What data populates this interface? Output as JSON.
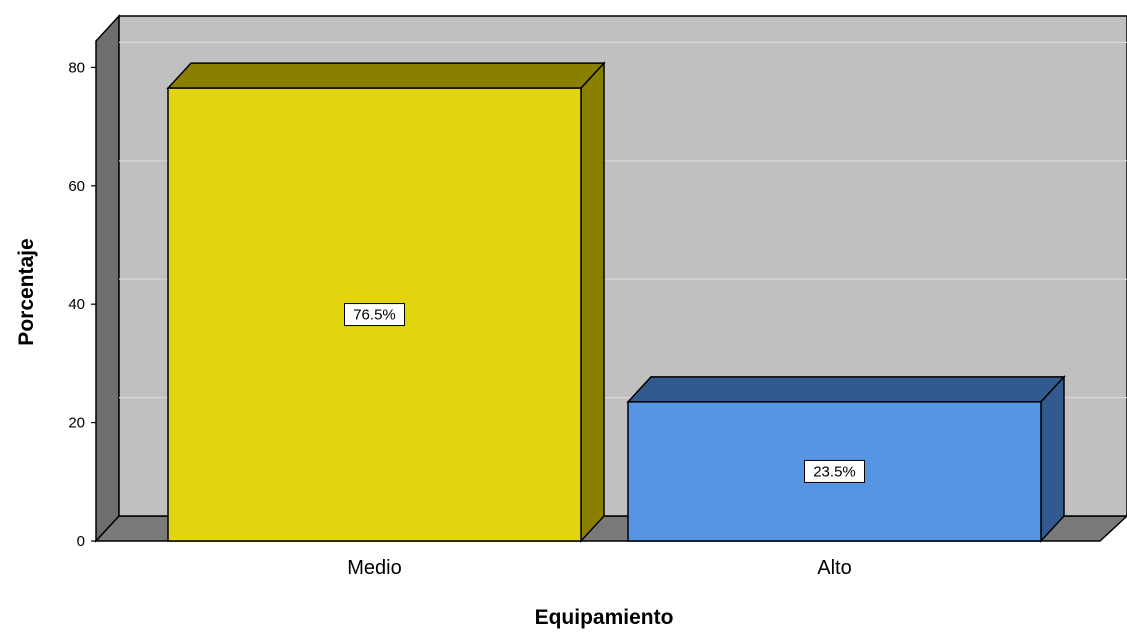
{
  "chart_data": {
    "type": "bar",
    "categories": [
      "Medio",
      "Alto"
    ],
    "values": [
      76.5,
      23.5
    ],
    "data_labels": [
      "76.5%",
      "23.5%"
    ],
    "xlabel": "Equipamiento",
    "ylabel": "Porcentaje",
    "ylim": [
      0,
      85
    ],
    "yticks": [
      0,
      20,
      40,
      60,
      80
    ],
    "grid": true,
    "three_d": true,
    "colors": {
      "bars": [
        "#e2d50e",
        "#5595e3"
      ],
      "bar_top": [
        "#8a8000",
        "#325a8e"
      ],
      "bar_side": [
        "#8a8000",
        "#325a8e"
      ],
      "back_wall": "#c0c0c0",
      "side_wall": "#6e6e6e",
      "floor": "#7a7a7a",
      "gridline": "#d8d8d8"
    }
  }
}
